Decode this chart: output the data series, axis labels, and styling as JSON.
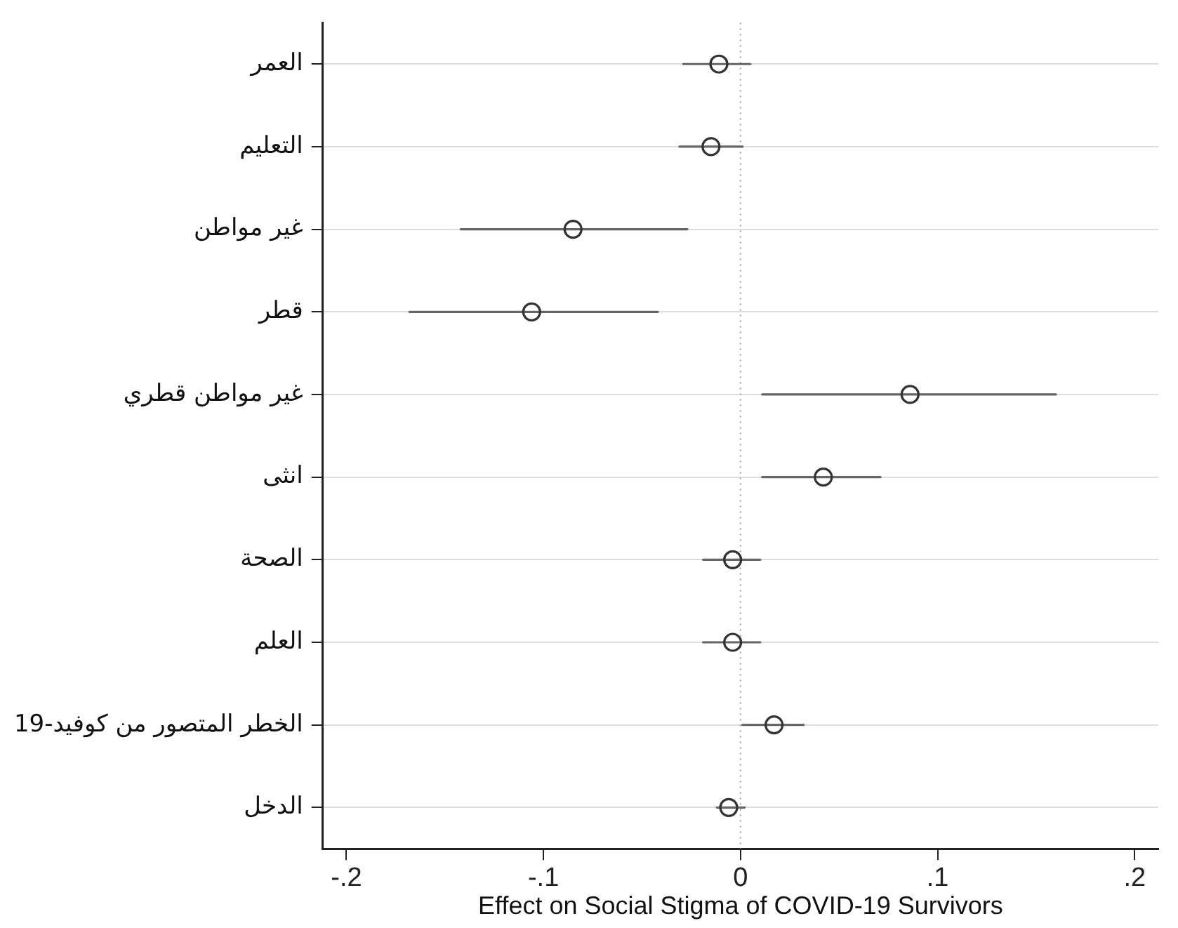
{
  "chart_data": {
    "type": "scatter",
    "orientation": "horizontal",
    "xlabel": "Effect on Social Stigma of COVID-19 Survivors",
    "categories": [
      "العمر",
      "التعليم",
      "غير مواطن",
      "قطر",
      "غير مواطن قطري",
      "انثى",
      "الصحة",
      "العلم",
      "الخطر المتصور من كوفيد-19",
      "الدخل"
    ],
    "values": [
      -0.011,
      -0.015,
      -0.085,
      -0.106,
      0.086,
      0.042,
      -0.004,
      -0.004,
      0.017,
      -0.006
    ],
    "errors": [
      [
        -0.029,
        0.005
      ],
      [
        -0.031,
        0.001
      ],
      [
        -0.142,
        -0.027
      ],
      [
        -0.168,
        -0.042
      ],
      [
        0.011,
        0.16
      ],
      [
        0.011,
        0.071
      ],
      [
        -0.019,
        0.01
      ],
      [
        -0.019,
        0.01
      ],
      [
        0.001,
        0.032
      ],
      [
        -0.012,
        0.002
      ]
    ],
    "color": "#333333",
    "marker": "circle",
    "grid": "y",
    "xlim": [
      -0.212,
      0.212
    ],
    "xticks": [
      {
        "value": -0.2,
        "label": "-.2"
      },
      {
        "value": -0.1,
        "label": "-.1"
      },
      0,
      {
        "value": 0.1,
        "label": ".1"
      },
      {
        "value": 0.2,
        "label": ".2"
      }
    ],
    "ref_lines": [
      {
        "axis": "x",
        "value": 0,
        "line_style": "dotted",
        "color": "#999999"
      }
    ]
  }
}
